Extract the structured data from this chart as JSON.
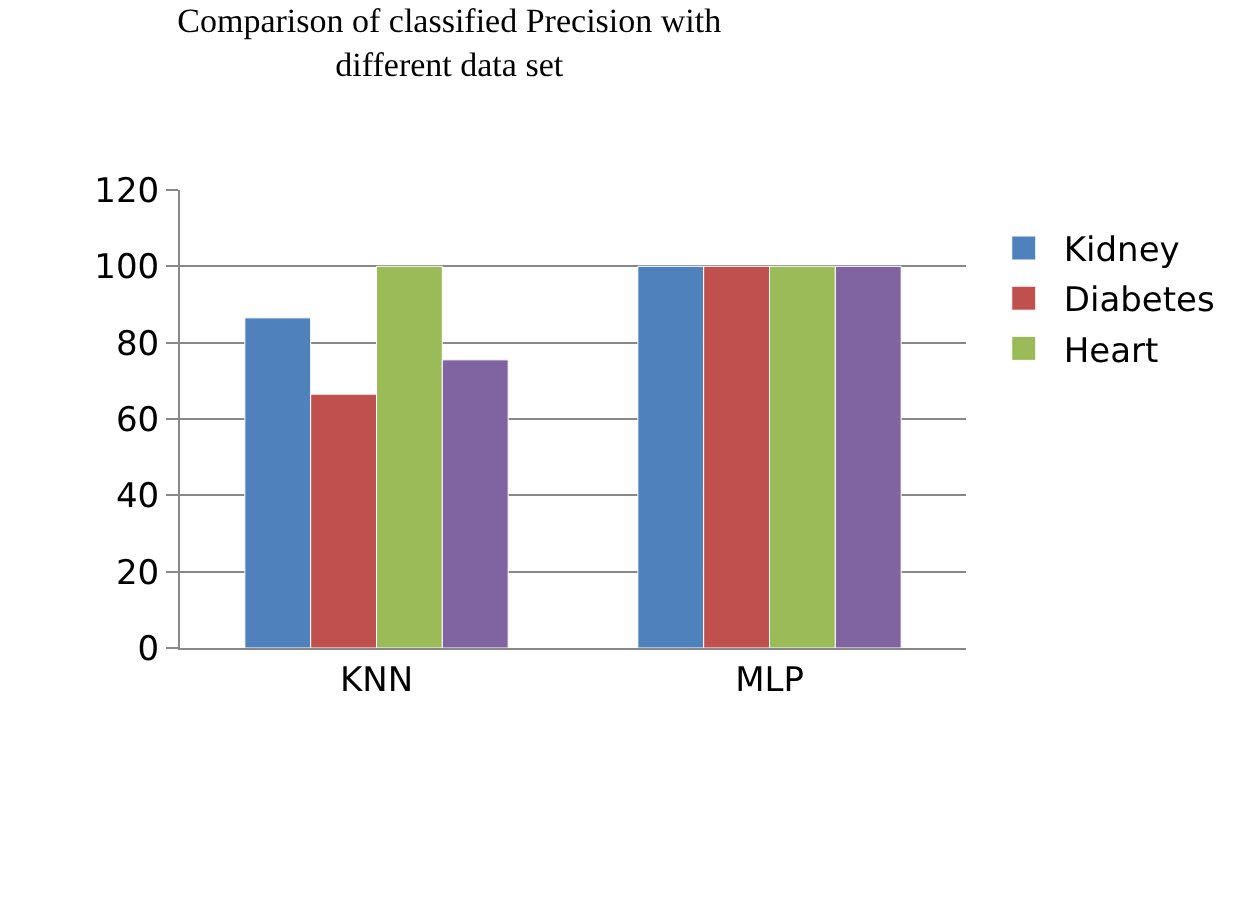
{
  "chart_data": {
    "type": "bar",
    "title": "Comparison of classified Precision with\ndifferent data set",
    "categories": [
      "KNN",
      "MLP"
    ],
    "series": [
      {
        "name": "Kidney",
        "color": "#4f81bd",
        "values": [
          86.5,
          100
        ]
      },
      {
        "name": "Diabetes",
        "color": "#c0504d",
        "values": [
          66.5,
          100
        ]
      },
      {
        "name": "Heart",
        "color": "#9bbb59",
        "values": [
          100,
          100
        ]
      },
      {
        "color": "#8064a2",
        "values": [
          75.5,
          100
        ]
      }
    ],
    "ylim": [
      0,
      120
    ],
    "yticks": [
      0,
      20,
      40,
      60,
      80,
      100,
      120
    ],
    "grid": "y",
    "legend": "right"
  }
}
